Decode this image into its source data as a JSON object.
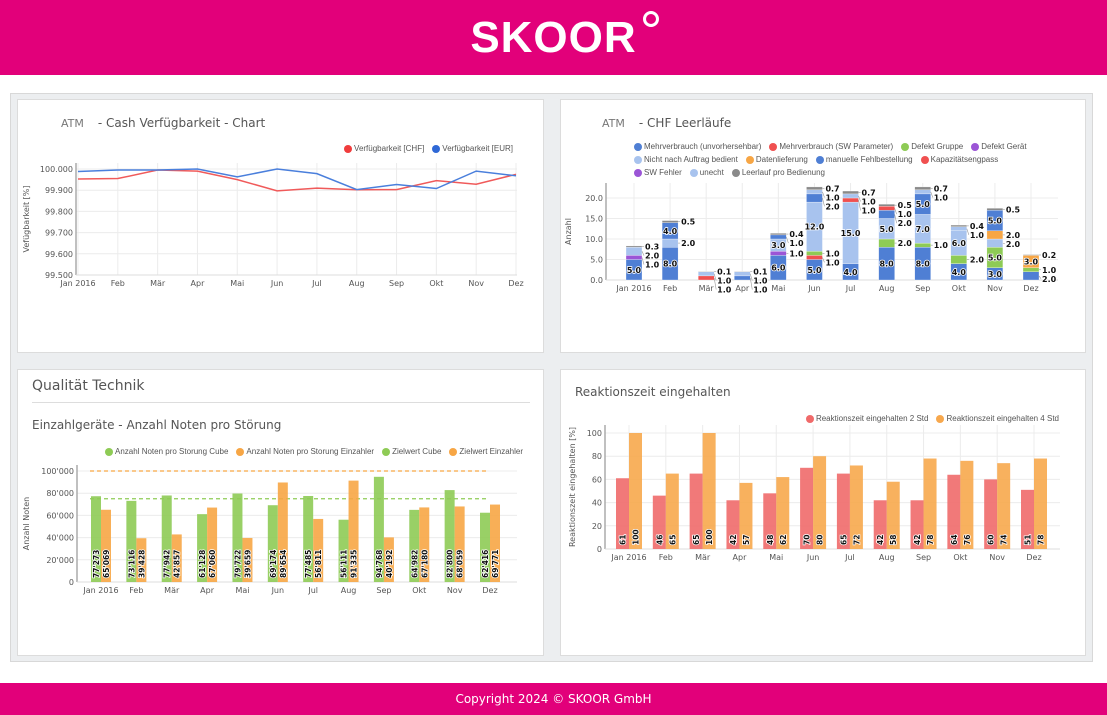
{
  "header": {
    "logo": "SKOOR"
  },
  "footer": {
    "text": "Copyright 2024 © SKOOR GmbH"
  },
  "months": [
    "Jan 2016",
    "Feb",
    "Mär",
    "Apr",
    "Mai",
    "Jun",
    "Jul",
    "Aug",
    "Sep",
    "Okt",
    "Nov",
    "Dez"
  ],
  "panel_tl": {
    "prefix": "ATM",
    "title": "- Cash Verfügbarkeit - Chart"
  },
  "panel_tr": {
    "prefix": "ATM",
    "title": "- CHF Leerläufe"
  },
  "panel_bl": {
    "section": "Qualität Technik",
    "title": "Einzahlgeräte - Anzahl Noten pro Störung"
  },
  "panel_br": {
    "title": "Reaktionszeit eingehalten"
  },
  "chart_data": [
    {
      "type": "line",
      "ylabel": "Vefügbarkeit [%]",
      "ylim": [
        99.5,
        100.0
      ],
      "yticks": [
        "99.500",
        "99.600",
        "99.700",
        "99.800",
        "99.900",
        "100.000"
      ],
      "grid": true,
      "legend": "top-right",
      "series": [
        {
          "name": "Verfügbarkeit [CHF]",
          "color": "#f05a5a",
          "values": [
            99.953,
            99.955,
            99.995,
            99.99,
            99.95,
            99.897,
            99.91,
            99.902,
            99.903,
            99.945,
            99.928,
            99.975
          ]
        },
        {
          "name": "Verfügbarkeit [EUR]",
          "color": "#4a7fdc",
          "values": [
            99.988,
            99.995,
            99.995,
            100.0,
            99.963,
            100.0,
            99.978,
            99.903,
            99.927,
            99.908,
            99.99,
            99.968
          ]
        }
      ]
    },
    {
      "type": "bar",
      "stacked": true,
      "ylabel": "Anzahl",
      "ylim": [
        0,
        23
      ],
      "yticks": [
        "0.0",
        "5.0",
        "10.0",
        "15.0",
        "20.0"
      ],
      "legend": "top",
      "series": [
        {
          "name": "Mehrverbrauch (unvorhersehbar)",
          "color": "#4f7fd4",
          "values": [
            5,
            8,
            0,
            1,
            6,
            5,
            4,
            8,
            8,
            4,
            3,
            2
          ]
        },
        {
          "name": "Mehrverbrauch (SW Parameter)",
          "color": "#f05050",
          "values": [
            0,
            0,
            1,
            0,
            0,
            1,
            0,
            0,
            0,
            0,
            0,
            0
          ]
        },
        {
          "name": "Defekt Gruppe",
          "color": "#8ecb55",
          "values": [
            0,
            0,
            0,
            0,
            0,
            1,
            0,
            2,
            1,
            2,
            5,
            1
          ]
        },
        {
          "name": "Defekt Gerät",
          "color": "#9b55d6",
          "values": [
            1,
            0,
            0,
            0,
            1,
            0,
            0,
            0,
            0,
            0,
            0,
            0
          ]
        },
        {
          "name": "Nicht nach Auftrag bedient",
          "color": "#a8c3ee",
          "values": [
            2,
            2,
            1,
            1,
            3,
            12,
            15,
            5,
            7,
            6,
            2,
            0
          ]
        },
        {
          "name": "Datenlieferung",
          "color": "#f7a645",
          "values": [
            0,
            0,
            0,
            0,
            0,
            0,
            0,
            0,
            0,
            0,
            2,
            3
          ]
        },
        {
          "name": "manuelle Fehlbestellung",
          "color": "#4f7fd4",
          "values": [
            0,
            4,
            0,
            0,
            1,
            2,
            0,
            2,
            5,
            0,
            5,
            0
          ]
        },
        {
          "name": "Kapazitätsengpass",
          "color": "#f05050",
          "values": [
            0,
            0,
            0,
            0,
            0,
            0,
            1,
            1,
            0,
            0,
            0,
            0
          ]
        },
        {
          "name": "SW Fehler",
          "color": "#9b55d6",
          "values": [
            0,
            0,
            0,
            0,
            0,
            0,
            0,
            0,
            0,
            0,
            0,
            0
          ]
        },
        {
          "name": "unecht",
          "color": "#a8c3ee",
          "values": [
            0,
            0,
            0,
            0,
            0,
            1,
            1,
            0,
            1,
            1,
            0,
            0
          ]
        },
        {
          "name": "Leerlauf pro Bedienung",
          "color": "#8a8a8a",
          "values": [
            0.3,
            0.5,
            0.1,
            0.1,
            0.4,
            0.7,
            0.7,
            0.5,
            0.7,
            0.4,
            0.5,
            0.2
          ]
        }
      ]
    },
    {
      "type": "bar",
      "ylabel": "Anzahl Noten",
      "ylim": [
        0,
        100000
      ],
      "yticks": [
        "0",
        "20'000",
        "40'000",
        "60'000",
        "80'000",
        "100'000"
      ],
      "legend": "top-right",
      "series": [
        {
          "name": "Anzahl Noten pro Storung Cube",
          "color": "#8ecb55",
          "values": [
            77273,
            73116,
            77942,
            61128,
            79722,
            69174,
            77485,
            56111,
            94768,
            64982,
            82800,
            62416
          ]
        },
        {
          "name": "Anzahl Noten pro Storung Einzahler",
          "color": "#f7a645",
          "values": [
            65069,
            39428,
            42857,
            67060,
            39659,
            89654,
            56811,
            91335,
            40192,
            67180,
            68059,
            69771
          ]
        }
      ],
      "targets": [
        {
          "name": "Zielwert Cube",
          "color": "#8ecb55",
          "value": 75000
        },
        {
          "name": "Zielwert Einzahler",
          "color": "#f7a645",
          "value": 100000
        }
      ]
    },
    {
      "type": "bar",
      "ylabel": "Reaktionszeit eingehalten [%]",
      "ylim": [
        0,
        100
      ],
      "yticks": [
        "0",
        "20",
        "40",
        "60",
        "80",
        "100"
      ],
      "legend": "top-right",
      "series": [
        {
          "name": "Reaktionszeit eingehalten 2 Std",
          "color": "#f06a6a",
          "values": [
            61,
            46,
            65,
            42,
            48,
            70,
            65,
            42,
            42,
            64,
            60,
            51
          ]
        },
        {
          "name": "Reaktionszeit eingehalten 4 Std",
          "color": "#f7a84d",
          "values": [
            100,
            65,
            100,
            57,
            62,
            80,
            72,
            58,
            78,
            76,
            74,
            78
          ]
        }
      ]
    }
  ]
}
